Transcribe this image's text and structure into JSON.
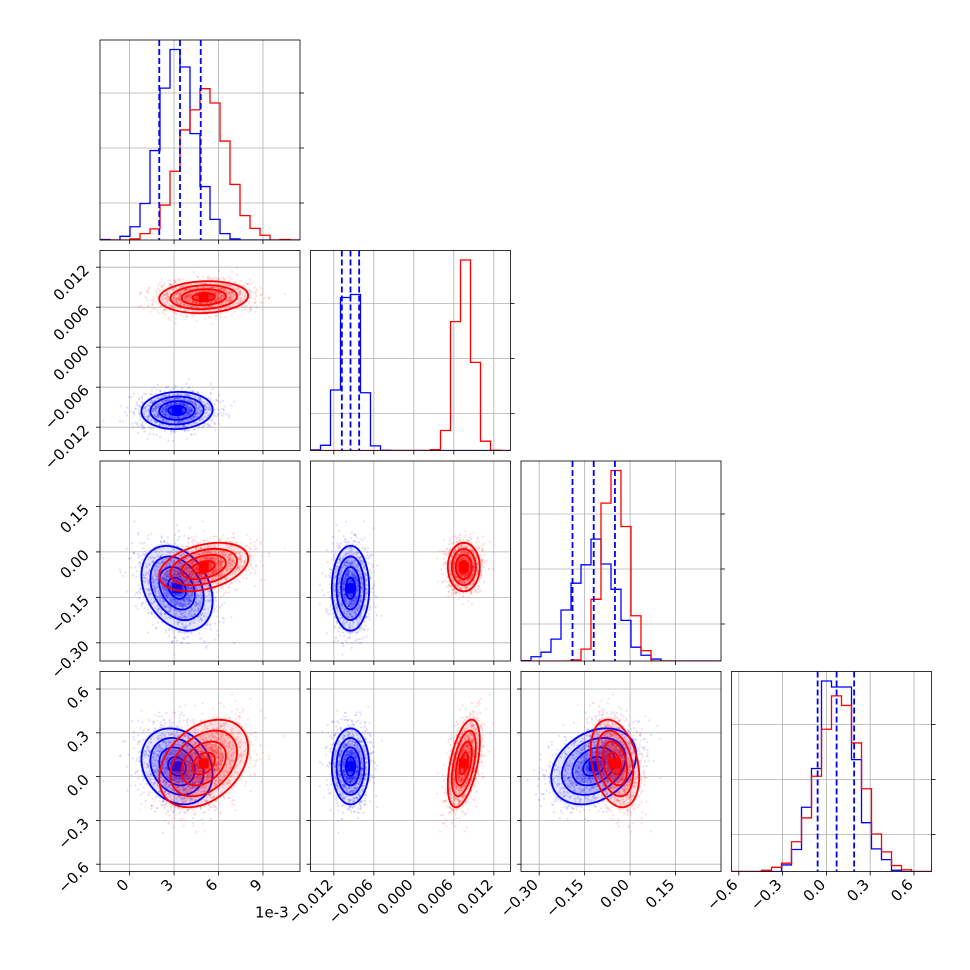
{
  "chart_data": {
    "type": "corner",
    "title": "",
    "offset_text": "1e-3",
    "colors": {
      "sample_a": "#0000ff",
      "sample_b": "#ff0000"
    },
    "grid": true,
    "parameters": [
      {
        "range": [
          -2,
          11.5
        ],
        "ticks": [
          0,
          3,
          6,
          9
        ],
        "tick_labels": [
          "0",
          "3",
          "6",
          "9"
        ]
      },
      {
        "range": [
          -0.0155,
          0.0145
        ],
        "ticks": [
          -0.012,
          -0.006,
          0.0,
          0.006,
          0.012
        ],
        "tick_labels": [
          "−0.012",
          "−0.006",
          "0.000",
          "0.006",
          "0.012"
        ]
      },
      {
        "range": [
          -0.36,
          0.3
        ],
        "ticks": [
          -0.3,
          -0.15,
          0.0,
          0.15
        ],
        "tick_labels": [
          "−0.30",
          "−0.15",
          "0.00",
          "0.15"
        ]
      },
      {
        "range": [
          -0.65,
          0.72
        ],
        "ticks": [
          -0.6,
          -0.3,
          0.0,
          0.3,
          0.6
        ],
        "tick_labels": [
          "−0.6",
          "−0.3",
          "0.0",
          "0.3",
          "0.6"
        ]
      }
    ],
    "samples": [
      {
        "color": "#0000ff",
        "mean": [
          3.2,
          -0.0095,
          -0.12,
          0.07
        ],
        "std": [
          1.2,
          0.0014,
          0.07,
          0.13
        ],
        "corr": [
          [
            1,
            0.05,
            -0.3,
            -0.2
          ],
          [
            0.05,
            1,
            0.0,
            0.0
          ],
          [
            -0.3,
            0.0,
            1,
            0.3
          ],
          [
            -0.2,
            0.0,
            0.3,
            1
          ]
        ],
        "quantiles": [
          [
            2.0,
            3.4,
            4.8
          ],
          [
            -0.0108,
            -0.0095,
            -0.0082
          ],
          [
            -0.19,
            -0.12,
            -0.05
          ],
          [
            -0.06,
            0.07,
            0.19
          ]
        ],
        "show_quantiles": true
      },
      {
        "color": "#ff0000",
        "mean": [
          5.0,
          0.0075,
          -0.05,
          0.09
        ],
        "std": [
          1.5,
          0.0012,
          0.04,
          0.15
        ],
        "corr": [
          [
            1,
            0.1,
            0.35,
            0.35
          ],
          [
            0.1,
            1,
            0.0,
            0.5
          ],
          [
            0.35,
            0.0,
            1,
            -0.3
          ],
          [
            0.35,
            0.5,
            -0.3,
            1
          ]
        ],
        "show_quantiles": false
      }
    ]
  }
}
